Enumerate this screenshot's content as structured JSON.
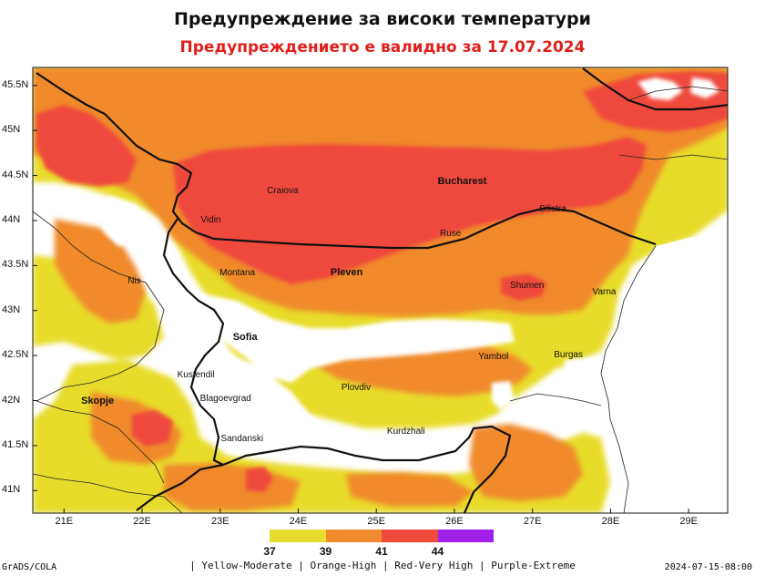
{
  "header": {
    "title": "Предупреждение за високи температури",
    "subtitle": "Предупреждението е валидно за 17.07.2024"
  },
  "chart_data": {
    "type": "heatmap",
    "title": "Предупреждение за високи температури",
    "subtitle": "Предупреждението е валидно за 17.07.2024",
    "x_ticks": [
      "21E",
      "22E",
      "23E",
      "24E",
      "25E",
      "26E",
      "27E",
      "28E",
      "29E"
    ],
    "y_ticks": [
      "45.5N",
      "45N",
      "44.5N",
      "44N",
      "43.5N",
      "43N",
      "42.5N",
      "42N",
      "41.5N",
      "41N"
    ],
    "xlim": [
      20.6,
      29.5
    ],
    "ylim": [
      40.75,
      45.7
    ],
    "colorbar": {
      "thresholds": [
        37,
        39,
        41,
        44
      ],
      "colors": [
        "#e8dc2c",
        "#f08a2c",
        "#ef4a3c",
        "#a020e8"
      ],
      "labels": [
        "37",
        "39",
        "41",
        "44"
      ]
    },
    "legend_text": "| Yellow-Moderate | Orange-High | Red-Very High | Purple-Extreme",
    "source": "GrADS/COLA",
    "timestamp": "2024-07-15-08:00",
    "cities": [
      {
        "name": "Craiova",
        "lon": 23.8,
        "lat": 44.32,
        "big": false
      },
      {
        "name": "Bucharest",
        "lon": 26.1,
        "lat": 44.43,
        "big": true
      },
      {
        "name": "Vidin",
        "lon": 22.88,
        "lat": 44.0,
        "big": false
      },
      {
        "name": "Ruse",
        "lon": 25.95,
        "lat": 43.85,
        "big": false
      },
      {
        "name": "Silistra",
        "lon": 27.26,
        "lat": 44.12,
        "big": false
      },
      {
        "name": "Montana",
        "lon": 23.22,
        "lat": 43.41,
        "big": false
      },
      {
        "name": "Pleven",
        "lon": 24.62,
        "lat": 43.42,
        "big": true
      },
      {
        "name": "Shumen",
        "lon": 26.93,
        "lat": 43.27,
        "big": false
      },
      {
        "name": "Varna",
        "lon": 27.92,
        "lat": 43.2,
        "big": false
      },
      {
        "name": "Nis",
        "lon": 21.9,
        "lat": 43.32,
        "big": false
      },
      {
        "name": "Sofia",
        "lon": 23.32,
        "lat": 42.7,
        "big": true
      },
      {
        "name": "Kustendil",
        "lon": 22.69,
        "lat": 42.28,
        "big": false
      },
      {
        "name": "Yambol",
        "lon": 26.5,
        "lat": 42.48,
        "big": false
      },
      {
        "name": "Burgas",
        "lon": 27.46,
        "lat": 42.5,
        "big": false
      },
      {
        "name": "Plovdiv",
        "lon": 24.74,
        "lat": 42.14,
        "big": false
      },
      {
        "name": "Skopje",
        "lon": 21.43,
        "lat": 42.0,
        "big": true
      },
      {
        "name": "Blagoevgrad",
        "lon": 23.07,
        "lat": 42.02,
        "big": false
      },
      {
        "name": "Kurdzhali",
        "lon": 25.38,
        "lat": 41.65,
        "big": false
      },
      {
        "name": "Sandanski",
        "lon": 23.28,
        "lat": 41.57,
        "big": false
      }
    ]
  }
}
